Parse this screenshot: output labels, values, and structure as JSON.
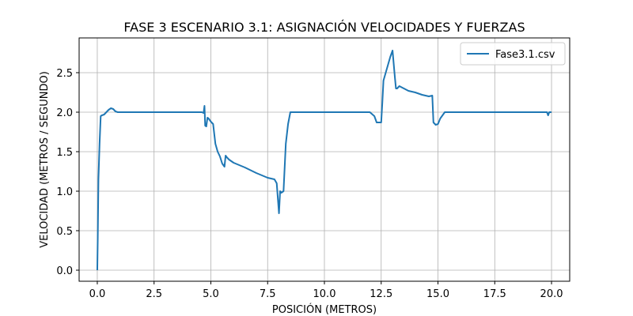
{
  "chart_data": {
    "type": "line",
    "title": "FASE 3 ESCENARIO 3.1: ASIGNACIÓN VELOCIDADES Y FUERZAS",
    "xlabel": "POSICIÓN (METROS)",
    "ylabel": "VELOCIDAD (METROS / SEGUNDO)",
    "xlim": [
      -0.8,
      20.8
    ],
    "ylim": [
      -0.14,
      2.94
    ],
    "xticks": [
      0.0,
      2.5,
      5.0,
      7.5,
      10.0,
      12.5,
      15.0,
      17.5,
      20.0
    ],
    "xtick_labels": [
      "0.0",
      "2.5",
      "5.0",
      "7.5",
      "10.0",
      "12.5",
      "15.0",
      "17.5",
      "20.0"
    ],
    "yticks": [
      0.0,
      0.5,
      1.0,
      1.5,
      2.0,
      2.5
    ],
    "ytick_labels": [
      "0.0",
      "0.5",
      "1.0",
      "1.5",
      "2.0",
      "2.5"
    ],
    "grid": true,
    "legend_position": "top-right",
    "colors": {
      "series": "#1f77b4",
      "grid": "#b0b0b0",
      "axes": "#000000"
    },
    "series": [
      {
        "name": "Fase3.1.csv",
        "x": [
          0.0,
          0.02,
          0.05,
          0.1,
          0.15,
          0.2,
          0.3,
          0.4,
          0.5,
          0.6,
          0.7,
          0.8,
          0.9,
          1.0,
          1.5,
          2.0,
          2.5,
          3.0,
          3.5,
          4.0,
          4.4,
          4.6,
          4.68,
          4.72,
          4.75,
          4.8,
          4.85,
          4.9,
          5.0,
          5.1,
          5.2,
          5.3,
          5.4,
          5.5,
          5.6,
          5.65,
          5.7,
          5.8,
          6.0,
          6.5,
          7.0,
          7.5,
          7.8,
          7.9,
          8.0,
          8.05,
          8.1,
          8.2,
          8.3,
          8.4,
          8.5,
          8.6,
          9.0,
          10.0,
          11.0,
          12.0,
          12.2,
          12.3,
          12.5,
          12.55,
          12.6,
          12.7,
          12.8,
          12.9,
          13.0,
          13.1,
          13.15,
          13.2,
          13.3,
          13.5,
          13.7,
          14.0,
          14.3,
          14.6,
          14.75,
          14.8,
          14.9,
          15.0,
          15.1,
          15.3,
          15.5,
          16.0,
          16.5,
          17.0,
          17.5,
          18.0,
          18.5,
          19.0,
          19.5,
          19.8,
          19.85,
          19.9,
          20.0
        ],
        "y": [
          0.0,
          0.4,
          1.15,
          1.6,
          1.95,
          1.96,
          1.97,
          2.0,
          2.03,
          2.05,
          2.04,
          2.01,
          2.0,
          2.0,
          2.0,
          2.0,
          2.0,
          2.0,
          2.0,
          2.0,
          2.0,
          2.0,
          1.99,
          2.08,
          1.83,
          1.82,
          1.93,
          1.92,
          1.88,
          1.85,
          1.6,
          1.5,
          1.44,
          1.35,
          1.31,
          1.45,
          1.43,
          1.4,
          1.36,
          1.3,
          1.23,
          1.17,
          1.15,
          1.1,
          0.72,
          1.0,
          0.98,
          1.0,
          1.6,
          1.85,
          2.0,
          2.0,
          2.0,
          2.0,
          2.0,
          2.0,
          1.95,
          1.87,
          1.87,
          2.12,
          2.4,
          2.5,
          2.6,
          2.7,
          2.78,
          2.45,
          2.3,
          2.3,
          2.33,
          2.3,
          2.27,
          2.25,
          2.22,
          2.2,
          2.21,
          1.87,
          1.84,
          1.85,
          1.92,
          2.0,
          2.0,
          2.0,
          2.0,
          2.0,
          2.0,
          2.0,
          2.0,
          2.0,
          2.0,
          2.0,
          1.96,
          2.0,
          2.0
        ]
      }
    ]
  }
}
